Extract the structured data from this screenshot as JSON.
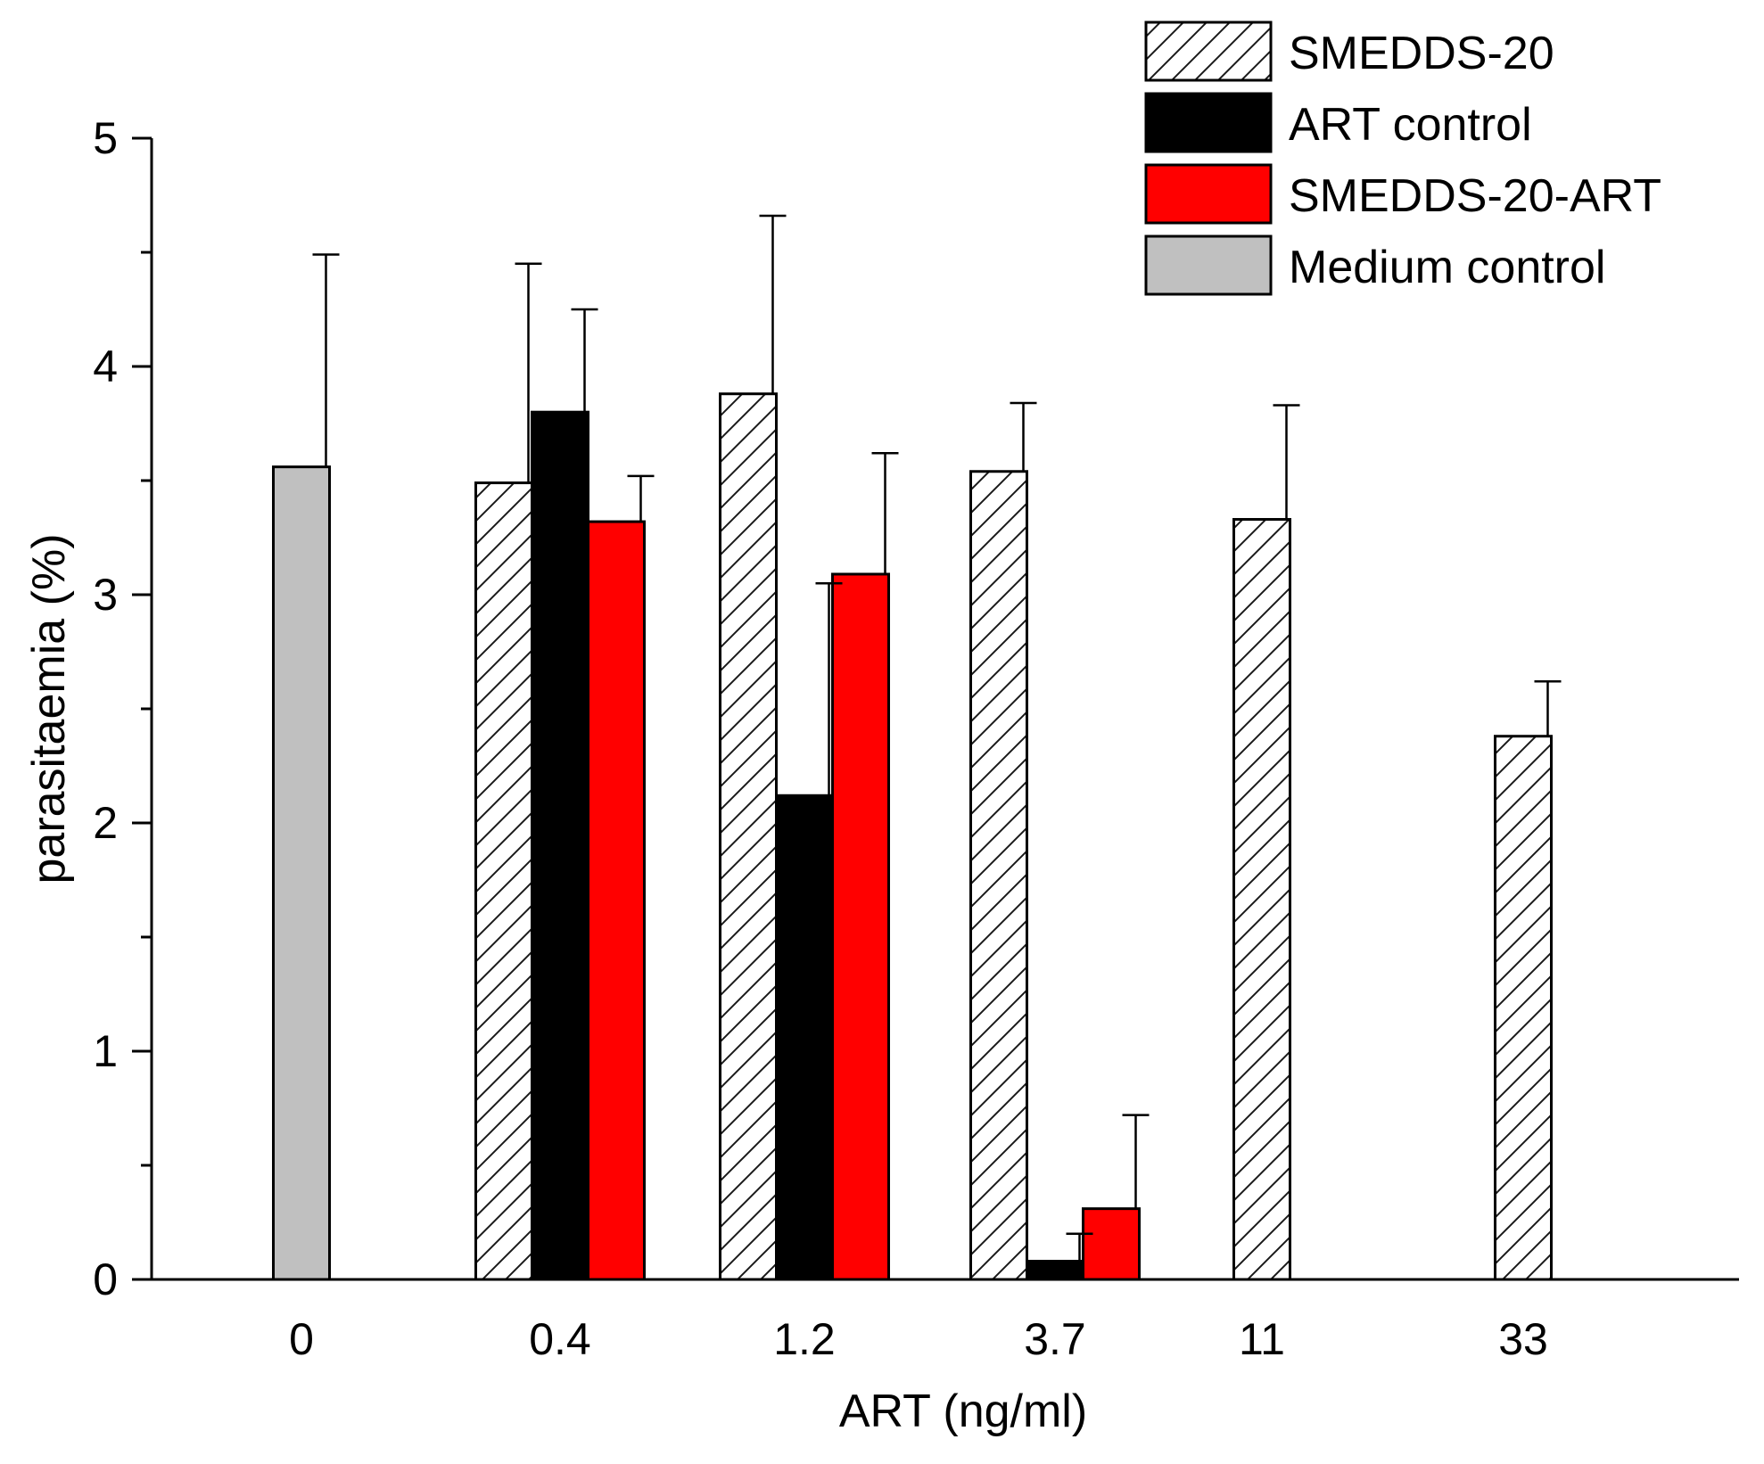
{
  "chart_data": {
    "type": "bar",
    "title": "",
    "xlabel": "ART (ng/ml)",
    "ylabel": "parasitaemia (%)",
    "ylim": [
      0,
      5
    ],
    "yticks": [
      0,
      1,
      2,
      3,
      4,
      5
    ],
    "categories": [
      "0",
      "0.4",
      "1.2",
      "3.7",
      "11",
      "33"
    ],
    "legend_position": "top-right",
    "series": [
      {
        "name": "SMEDDS-20",
        "key": "smedds",
        "fill": "hatch",
        "color": "#ffffff",
        "values": [
          null,
          3.49,
          3.88,
          3.54,
          3.33,
          2.38
        ],
        "errors": [
          null,
          0.96,
          0.78,
          0.3,
          0.5,
          0.24
        ]
      },
      {
        "name": "ART control",
        "key": "art",
        "fill": "solid",
        "color": "#000000",
        "values": [
          null,
          3.8,
          2.12,
          0.08,
          null,
          null
        ],
        "errors": [
          null,
          0.45,
          0.93,
          0.12,
          null,
          null
        ]
      },
      {
        "name": "SMEDDS-20-ART",
        "key": "smeddsart",
        "fill": "solid",
        "color": "#ff0000",
        "values": [
          null,
          3.32,
          3.09,
          0.31,
          null,
          null
        ],
        "errors": [
          null,
          0.2,
          0.53,
          0.41,
          null,
          null
        ]
      },
      {
        "name": "Medium control",
        "key": "medium",
        "fill": "solid",
        "color": "#c0c0c0",
        "values": [
          3.56,
          null,
          null,
          null,
          null,
          null
        ],
        "errors": [
          0.93,
          null,
          null,
          null,
          null,
          null
        ]
      }
    ]
  }
}
